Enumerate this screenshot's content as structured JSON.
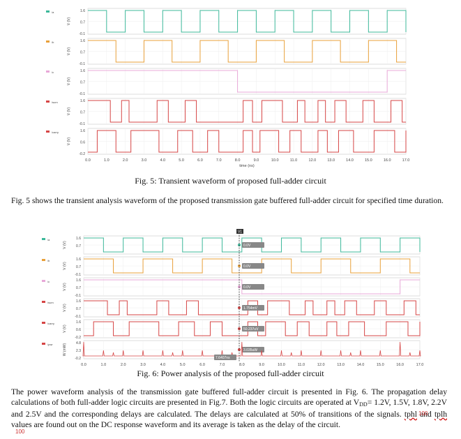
{
  "fig5": {
    "ylabel": "V (V)",
    "xlabel": "time (ns)",
    "xticks": [
      "0.0",
      "1.0",
      "2.0",
      "3.0",
      "4.0",
      "5.0",
      "6.0",
      "7.0",
      "8.0",
      "9.0",
      "10.0",
      "11.0",
      "12.0",
      "13.0",
      "14.0",
      "15.0",
      "16.0",
      "17.0"
    ],
    "panels": [
      {
        "legend": "/a",
        "color": "#3cb89a",
        "yticks": [
          "1.6",
          "0.7",
          "-0.1"
        ],
        "edges": [
          0,
          1,
          2,
          3,
          4,
          5,
          6,
          7,
          8,
          9,
          10,
          11,
          12,
          13,
          14,
          15,
          16,
          17
        ],
        "start": 1
      },
      {
        "legend": "/b",
        "color": "#e8a03a",
        "yticks": [
          "1.6",
          "0.7",
          "-0.1"
        ],
        "edges": [
          0,
          1.5,
          3,
          4.5,
          6,
          7.5,
          9,
          10.5,
          12,
          13.5,
          15,
          16.5
        ],
        "start": 1
      },
      {
        "legend": "/c",
        "color": "#e8a8d8",
        "yticks": [
          "1.6",
          "0.7",
          "-0.1"
        ],
        "edges": [
          0,
          8,
          16
        ],
        "start": 1
      },
      {
        "legend": "/sum",
        "color": "#d64545",
        "yticks": [
          "1.6",
          "0.7",
          "-0.1"
        ],
        "edges": [
          0,
          1.2,
          1.8,
          2.2,
          3.7,
          4.3,
          5.2,
          5.8,
          8.3,
          8.8,
          9.3,
          10.4,
          11.2,
          11.6,
          12.3,
          12.7,
          13.2,
          13.8,
          14.7,
          15.3,
          16.2,
          16.8
        ],
        "start": 1
      },
      {
        "legend": "/carry",
        "color": "#d64545",
        "yticks": [
          "1.6",
          "0.6",
          "-0.2"
        ],
        "edges": [
          0,
          0.5,
          1.5,
          2.3,
          3.8,
          4.8,
          5.6,
          6.4,
          7.0,
          8.3,
          8.8,
          9.2,
          10.2,
          10.8,
          11.4,
          12.3,
          12.8,
          13.4,
          14.2,
          15.3,
          16.4,
          17.0
        ],
        "start": 0
      }
    ]
  },
  "fig6": {
    "ylabel": "V (V)",
    "ylabel_power": "W (mW)",
    "xlabel": "time (ns)",
    "cursor_label": "V1",
    "cursor_time": "7.6407ns",
    "xticks": [
      "0.0",
      "1.0",
      "2.0",
      "3.0",
      "4.0",
      "5.0",
      "6.0",
      "7.0",
      "8.0",
      "9.0",
      "10.0",
      "11.0",
      "12.0",
      "13.0",
      "14.0",
      "15.0",
      "16.0",
      "17.0"
    ],
    "panels": [
      {
        "legend": "/a",
        "color": "#3cb89a",
        "yticks": [
          "1.6",
          "0.7"
        ],
        "marker": "0.0V"
      },
      {
        "legend": "/b",
        "color": "#e8a03a",
        "yticks": [
          "1.6",
          "0.7",
          "-0.1"
        ],
        "marker": "0.0V"
      },
      {
        "legend": "/c",
        "color": "#e8a8d8",
        "yticks": [
          "1.6",
          "0.7",
          "-0.1"
        ],
        "marker": "0.0V"
      },
      {
        "legend": "/sum",
        "color": "#d64545",
        "yticks": [
          "1.6",
          "0.7",
          "-0.1"
        ],
        "marker": "1.754mV"
      },
      {
        "legend": "/carry",
        "color": "#d64545",
        "yticks": [
          "1.6",
          "0.6",
          "-0.2"
        ],
        "marker": "50.237uV"
      },
      {
        "legend": "/pwr",
        "color": "#d64545",
        "yticks": [
          "4.8",
          "2.3",
          "-0.2"
        ],
        "marker": "3.035uW"
      }
    ]
  },
  "captions": {
    "fig5": "Fig. 5: Transient waveform of proposed full-adder circuit",
    "fig6": "Fig. 6: Power analysis of the proposed full-adder circuit"
  },
  "paragraphs": {
    "p1": "Fig. 5 shows the transient analysis waveform of the proposed transmission gate buffered full-adder circuit for specified time duration.",
    "p2a": "The power waveform analysis of the transmission gate buffered full-adder circuit is presented in Fig. 6. The propagation delay calculations of both full-adder logic circuits are presented in Fig.7. Both the logic circuits are operated at V",
    "p2sub": "DD",
    "p2b": "= 1.2V, 1.5V, 1.8V, 2.2V and 2.5V and the corresponding delays are calculated. The delays are calculated at 50% of transitions of the signals. ",
    "p2u1": "tphl",
    "p2c": " and ",
    "p2u2": "tplh",
    "p2d": " values are found out on the DC response waveform and its average is taken as the delay of the circuit."
  },
  "page_marks": [
    "100",
    "100"
  ]
}
